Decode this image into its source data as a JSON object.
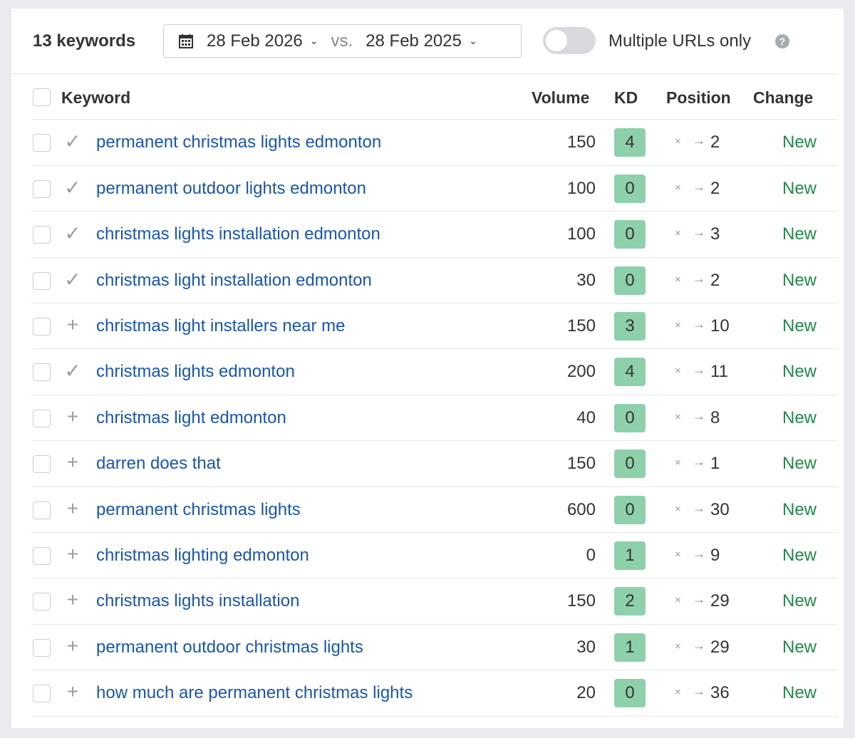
{
  "toolbar": {
    "count": "13 keywords",
    "date_from": "28 Feb 2026",
    "vs": "vs.",
    "date_to": "28 Feb 2025",
    "toggle_label": "Multiple URLs only",
    "toggle_on": false,
    "help": "?"
  },
  "columns": {
    "keyword": "Keyword",
    "volume": "Volume",
    "kd": "KD",
    "position": "Position",
    "change": "Change"
  },
  "colors": {
    "link": "#1a56a8",
    "kd_badge": "#8ed0aa",
    "new": "#1f8a45"
  },
  "rows": [
    {
      "icon": "check",
      "keyword": "permanent christmas lights edmonton",
      "volume": "150",
      "kd": "4",
      "from": "×",
      "to": "2",
      "change": "New"
    },
    {
      "icon": "check",
      "keyword": "permanent outdoor lights edmonton",
      "volume": "100",
      "kd": "0",
      "from": "×",
      "to": "2",
      "change": "New"
    },
    {
      "icon": "check",
      "keyword": "christmas lights installation edmonton",
      "volume": "100",
      "kd": "0",
      "from": "×",
      "to": "3",
      "change": "New"
    },
    {
      "icon": "check",
      "keyword": "christmas light installation edmonton",
      "volume": "30",
      "kd": "0",
      "from": "×",
      "to": "2",
      "change": "New"
    },
    {
      "icon": "plus",
      "keyword": "christmas light installers near me",
      "volume": "150",
      "kd": "3",
      "from": "×",
      "to": "10",
      "change": "New"
    },
    {
      "icon": "check",
      "keyword": "christmas lights edmonton",
      "volume": "200",
      "kd": "4",
      "from": "×",
      "to": "11",
      "change": "New"
    },
    {
      "icon": "plus",
      "keyword": "christmas light edmonton",
      "volume": "40",
      "kd": "0",
      "from": "×",
      "to": "8",
      "change": "New"
    },
    {
      "icon": "plus",
      "keyword": "darren does that",
      "volume": "150",
      "kd": "0",
      "from": "×",
      "to": "1",
      "change": "New"
    },
    {
      "icon": "plus",
      "keyword": "permanent christmas lights",
      "volume": "600",
      "kd": "0",
      "from": "×",
      "to": "30",
      "change": "New"
    },
    {
      "icon": "plus",
      "keyword": "christmas lighting edmonton",
      "volume": "0",
      "kd": "1",
      "from": "×",
      "to": "9",
      "change": "New"
    },
    {
      "icon": "plus",
      "keyword": "christmas lights installation",
      "volume": "150",
      "kd": "2",
      "from": "×",
      "to": "29",
      "change": "New"
    },
    {
      "icon": "plus",
      "keyword": "permanent outdoor christmas lights",
      "volume": "30",
      "kd": "1",
      "from": "×",
      "to": "29",
      "change": "New"
    },
    {
      "icon": "plus",
      "keyword": "how much are permanent christmas lights",
      "volume": "20",
      "kd": "0",
      "from": "×",
      "to": "36",
      "change": "New"
    }
  ]
}
